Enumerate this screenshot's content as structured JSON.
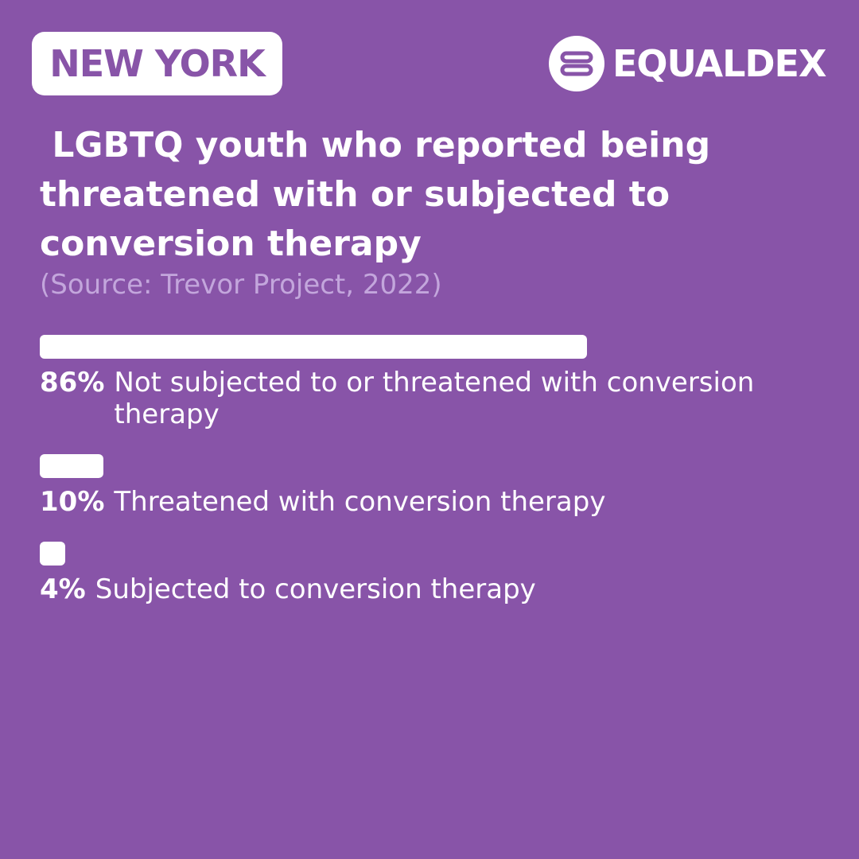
{
  "header": {
    "region": "NEW YORK",
    "brand": "EQUALDEX"
  },
  "chart_data": {
    "type": "bar",
    "orientation": "horizontal",
    "title": " LGBTQ youth who reported being threatened with or subjected to conversion therapy",
    "subtitle": "(Source: Trevor Project, 2022)",
    "categories": [
      "Not subjected to or threatened with conversion therapy",
      "Threatened with conversion therapy",
      "Subjected to conversion therapy"
    ],
    "values": [
      86,
      10,
      4
    ],
    "value_labels": [
      "86%",
      "10%",
      "4%"
    ],
    "color": "#ffffff",
    "xlim": [
      0,
      100
    ]
  }
}
